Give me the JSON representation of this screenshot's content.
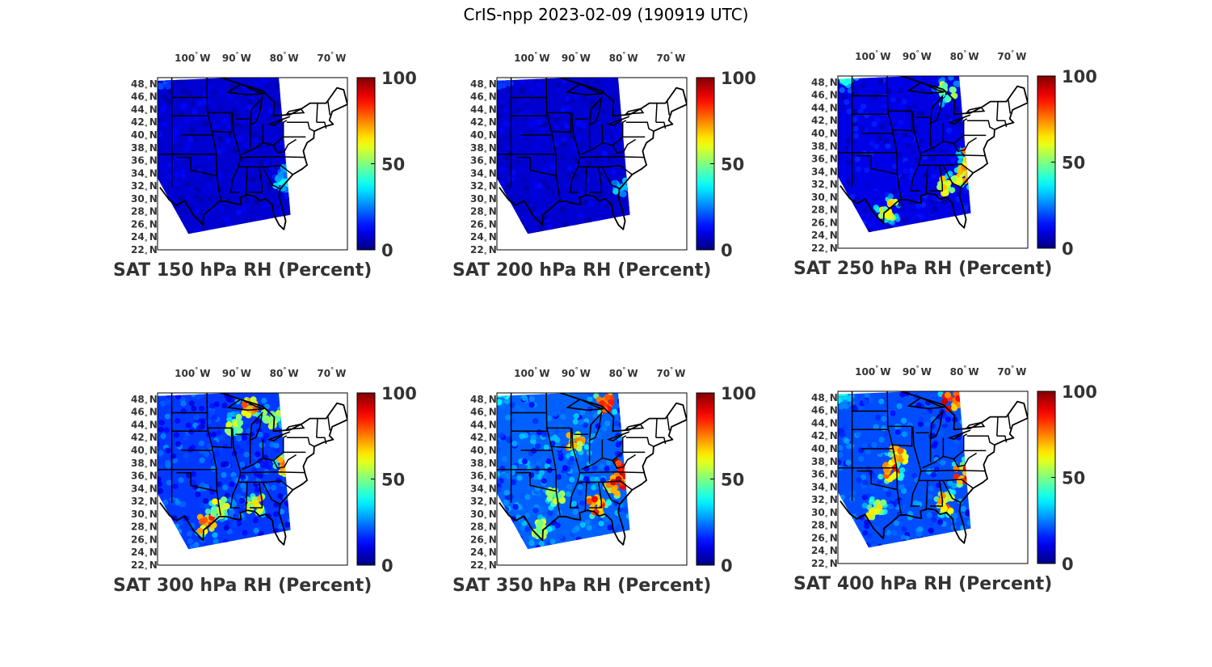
{
  "figure": {
    "title": "CrIS-npp 2023-02-09 (190919 UTC)"
  },
  "colors": {
    "map_border": "#000000",
    "land_bg": "#ffffff",
    "text": "#333333"
  },
  "chart_data": [
    {
      "type": "heatmap",
      "title": "SAT 150 hPa RH (Percent)",
      "xlabel": "",
      "ylabel": "",
      "lon_ticks": [
        "100",
        "90",
        "80",
        "70"
      ],
      "lon_suffix": "W",
      "lat_ticks": [
        "48",
        "46",
        "44",
        "42",
        "40",
        "38",
        "36",
        "34",
        "32",
        "30",
        "28",
        "26",
        "24",
        "22"
      ],
      "lat_suffix": "N",
      "xlim": [
        -107,
        -67
      ],
      "ylim": [
        22,
        49
      ],
      "colorbar": {
        "min": 0,
        "max": 100,
        "ticks": [
          "0",
          "50",
          "100"
        ],
        "colormap": "jet"
      },
      "swath_mean_rh": 8,
      "features": [
        {
          "lon": -80.5,
          "lat": 32.5,
          "rh": 35
        },
        {
          "lon": -79.5,
          "lat": 34.0,
          "rh": 30
        },
        {
          "lon": -105.5,
          "lat": 48.8,
          "rh": 20
        }
      ]
    },
    {
      "type": "heatmap",
      "title": "SAT 200 hPa RH (Percent)",
      "xlabel": "",
      "ylabel": "",
      "lon_ticks": [
        "100",
        "90",
        "80",
        "70"
      ],
      "lon_suffix": "W",
      "lat_ticks": [
        "48",
        "46",
        "44",
        "42",
        "40",
        "38",
        "36",
        "34",
        "32",
        "30",
        "28",
        "26",
        "24",
        "22"
      ],
      "lat_suffix": "N",
      "xlim": [
        -107,
        -67
      ],
      "ylim": [
        22,
        49
      ],
      "colorbar": {
        "min": 0,
        "max": 100,
        "ticks": [
          "0",
          "50",
          "100"
        ],
        "colormap": "jet"
      },
      "swath_mean_rh": 8,
      "features": [
        {
          "lon": -80.8,
          "lat": 32.0,
          "rh": 30
        },
        {
          "lon": -105.5,
          "lat": 48.8,
          "rh": 20
        }
      ]
    },
    {
      "type": "heatmap",
      "title": "SAT 250 hPa RH (Percent)",
      "xlabel": "",
      "ylabel": "",
      "lon_ticks": [
        "100",
        "90",
        "80",
        "70"
      ],
      "lon_suffix": "W",
      "lat_ticks": [
        "48",
        "46",
        "44",
        "42",
        "40",
        "38",
        "36",
        "34",
        "32",
        "30",
        "28",
        "26",
        "24",
        "22"
      ],
      "lat_suffix": "N",
      "xlim": [
        -107,
        -67
      ],
      "ylim": [
        22,
        49
      ],
      "colorbar": {
        "min": 0,
        "max": 100,
        "ticks": [
          "0",
          "50",
          "100"
        ],
        "colormap": "jet"
      },
      "swath_mean_rh": 10,
      "features": [
        {
          "lon": -80.5,
          "lat": 33.5,
          "rh": 68
        },
        {
          "lon": -79.0,
          "lat": 36.5,
          "rh": 70
        },
        {
          "lon": -84.0,
          "lat": 31.8,
          "rh": 65
        },
        {
          "lon": -96.5,
          "lat": 28.0,
          "rh": 62
        },
        {
          "lon": -84.0,
          "lat": 46.5,
          "rh": 55
        },
        {
          "lon": -105.0,
          "lat": 48.8,
          "rh": 40
        }
      ]
    },
    {
      "type": "heatmap",
      "title": "SAT 300 hPa RH (Percent)",
      "xlabel": "",
      "ylabel": "",
      "lon_ticks": [
        "100",
        "90",
        "80",
        "70"
      ],
      "lon_suffix": "W",
      "lat_ticks": [
        "48",
        "46",
        "44",
        "42",
        "40",
        "38",
        "36",
        "34",
        "32",
        "30",
        "28",
        "26",
        "24",
        "22"
      ],
      "lat_suffix": "N",
      "xlim": [
        -107,
        -67
      ],
      "ylim": [
        22,
        49
      ],
      "colorbar": {
        "min": 0,
        "max": 100,
        "ticks": [
          "0",
          "50",
          "100"
        ],
        "colormap": "jet"
      },
      "swath_mean_rh": 18,
      "features": [
        {
          "lon": -96.5,
          "lat": 28.5,
          "rh": 78
        },
        {
          "lon": -94.0,
          "lat": 31.0,
          "rh": 60
        },
        {
          "lon": -86.5,
          "lat": 31.5,
          "rh": 65
        },
        {
          "lon": -80.0,
          "lat": 37.5,
          "rh": 72
        },
        {
          "lon": -87.5,
          "lat": 46.8,
          "rh": 75
        },
        {
          "lon": -83.0,
          "lat": 45.0,
          "rh": 60
        },
        {
          "lon": -91.0,
          "lat": 44.0,
          "rh": 55
        },
        {
          "lon": -105.5,
          "lat": 48.8,
          "rh": 20
        }
      ]
    },
    {
      "type": "heatmap",
      "title": "SAT 350 hPa RH (Percent)",
      "xlabel": "",
      "ylabel": "",
      "lon_ticks": [
        "100",
        "90",
        "80",
        "70"
      ],
      "lon_suffix": "W",
      "lat_ticks": [
        "48",
        "46",
        "44",
        "42",
        "40",
        "38",
        "36",
        "34",
        "32",
        "30",
        "28",
        "26",
        "24",
        "22"
      ],
      "lat_suffix": "N",
      "xlim": [
        -107,
        -67
      ],
      "ylim": [
        22,
        49
      ],
      "colorbar": {
        "min": 0,
        "max": 100,
        "ticks": [
          "0",
          "50",
          "100"
        ],
        "colormap": "jet"
      },
      "swath_mean_rh": 22,
      "features": [
        {
          "lon": -80.5,
          "lat": 37.0,
          "rh": 90
        },
        {
          "lon": -82.0,
          "lat": 34.5,
          "rh": 88
        },
        {
          "lon": -86.0,
          "lat": 31.5,
          "rh": 80
        },
        {
          "lon": -97.5,
          "lat": 27.5,
          "rh": 60
        },
        {
          "lon": -84.0,
          "lat": 47.5,
          "rh": 85
        },
        {
          "lon": -90.5,
          "lat": 41.5,
          "rh": 70
        },
        {
          "lon": -94.5,
          "lat": 32.5,
          "rh": 55
        },
        {
          "lon": -105.5,
          "lat": 48.8,
          "rh": 40
        }
      ]
    },
    {
      "type": "heatmap",
      "title": "SAT 400 hPa RH (Percent)",
      "xlabel": "",
      "ylabel": "",
      "lon_ticks": [
        "100",
        "90",
        "80",
        "70"
      ],
      "lon_suffix": "W",
      "lat_ticks": [
        "48",
        "46",
        "44",
        "42",
        "40",
        "38",
        "36",
        "34",
        "32",
        "30",
        "28",
        "26",
        "24",
        "22"
      ],
      "lat_suffix": "N",
      "xlim": [
        -107,
        -67
      ],
      "ylim": [
        22,
        49
      ],
      "colorbar": {
        "min": 0,
        "max": 100,
        "ticks": [
          "0",
          "50",
          "100"
        ],
        "colormap": "jet"
      },
      "swath_mean_rh": 20,
      "features": [
        {
          "lon": -96.0,
          "lat": 36.5,
          "rh": 80
        },
        {
          "lon": -94.0,
          "lat": 39.0,
          "rh": 70
        },
        {
          "lon": -80.5,
          "lat": 36.0,
          "rh": 90
        },
        {
          "lon": -83.0,
          "lat": 47.5,
          "rh": 85
        },
        {
          "lon": -84.5,
          "lat": 31.5,
          "rh": 75
        },
        {
          "lon": -99.0,
          "lat": 30.5,
          "rh": 60
        },
        {
          "lon": -105.5,
          "lat": 48.8,
          "rh": 40
        }
      ]
    }
  ]
}
